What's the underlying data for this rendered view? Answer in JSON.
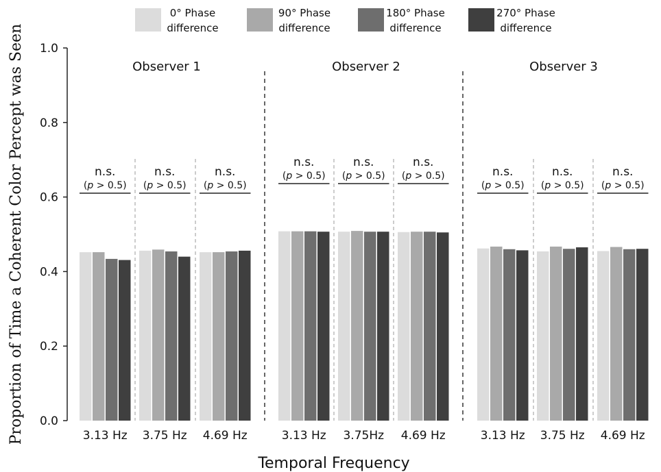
{
  "chart_data": {
    "type": "bar",
    "xlabel": "Temporal Frequency",
    "ylabel": "Proportion of Time a Coherent Color Percept was Seen",
    "ylim": [
      0,
      1.0
    ],
    "yticks": [
      "0.0",
      "0.2",
      "0.4",
      "0.6",
      "0.8",
      "1.0"
    ],
    "legend_position": "top",
    "series": [
      {
        "name": "0° Phase difference",
        "name_lines": [
          "0° Phase",
          "difference"
        ],
        "color": "#dcdcdc"
      },
      {
        "name": "90° Phase difference",
        "name_lines": [
          "90° Phase",
          "difference"
        ],
        "color": "#a9a9a9"
      },
      {
        "name": "180° Phase difference",
        "name_lines": [
          "180° Phase",
          "difference"
        ],
        "color": "#6e6e6e"
      },
      {
        "name": "270° Phase difference",
        "name_lines": [
          "270° Phase",
          "difference"
        ],
        "color": "#3f3f3f"
      }
    ],
    "observers": [
      {
        "title": "Observer 1",
        "groups": [
          {
            "label": "3.13 Hz",
            "values": [
              0.452,
              0.452,
              0.434,
              0.431
            ],
            "sig": "n.s.",
            "p": "(p > 0.5)"
          },
          {
            "label": "3.75 Hz",
            "values": [
              0.456,
              0.459,
              0.454,
              0.44
            ],
            "sig": "n.s.",
            "p": "(p > 0.5)"
          },
          {
            "label": "4.69 Hz",
            "values": [
              0.452,
              0.452,
              0.454,
              0.456
            ],
            "sig": "n.s.",
            "p": "(p > 0.5)"
          }
        ]
      },
      {
        "title": "Observer 2",
        "groups": [
          {
            "label": "3.13 Hz",
            "values": [
              0.508,
              0.508,
              0.508,
              0.507
            ],
            "sig": "n.s.",
            "p": "(p > 0.5)"
          },
          {
            "label": "3.75Hz",
            "values": [
              0.507,
              0.509,
              0.507,
              0.507
            ],
            "sig": "n.s.",
            "p": "(p > 0.5)"
          },
          {
            "label": "4.69 Hz",
            "values": [
              0.506,
              0.507,
              0.507,
              0.505
            ],
            "sig": "n.s.",
            "p": "(p > 0.5)"
          }
        ]
      },
      {
        "title": "Observer 3",
        "groups": [
          {
            "label": "3.13 Hz",
            "values": [
              0.462,
              0.467,
              0.46,
              0.457
            ],
            "sig": "n.s.",
            "p": "(p > 0.5)"
          },
          {
            "label": "3.75 Hz",
            "values": [
              0.454,
              0.467,
              0.461,
              0.465
            ],
            "sig": "n.s.",
            "p": "(p > 0.5)"
          },
          {
            "label": "4.69 Hz",
            "values": [
              0.455,
              0.466,
              0.46,
              0.461
            ],
            "sig": "n.s.",
            "p": "(p > 0.5)"
          }
        ]
      }
    ]
  }
}
